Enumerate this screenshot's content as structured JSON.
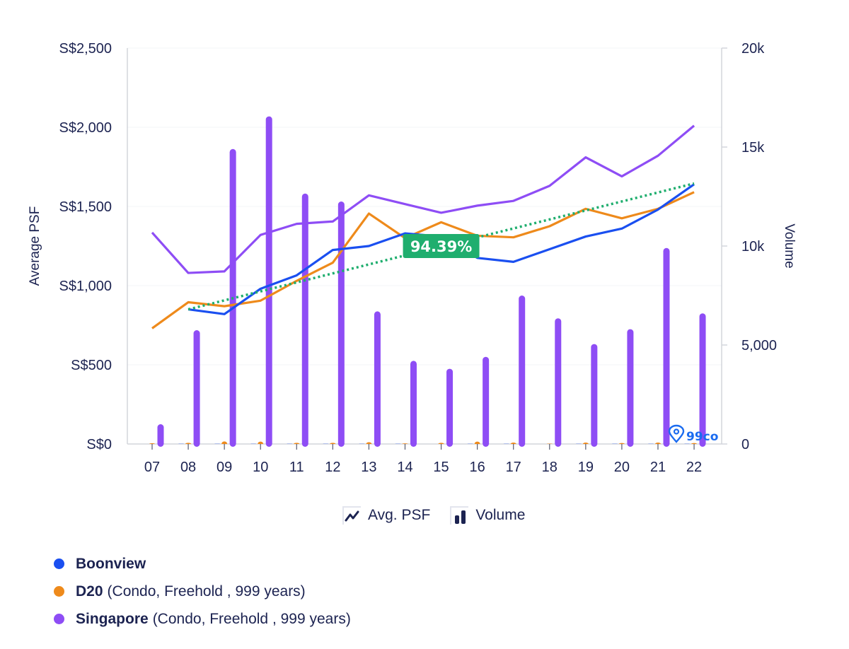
{
  "chart_data": {
    "type": "bar+line",
    "title": "",
    "categories": [
      "07",
      "08",
      "09",
      "10",
      "11",
      "12",
      "13",
      "14",
      "15",
      "16",
      "17",
      "18",
      "19",
      "20",
      "21",
      "22"
    ],
    "y_left": {
      "label": "Average PSF",
      "range": [
        0,
        2500
      ],
      "ticks": [
        0,
        500,
        1000,
        1500,
        2000,
        2500
      ],
      "tick_labels": [
        "S$0",
        "S$500",
        "S$1,000",
        "S$1,500",
        "S$2,000",
        "S$2,500"
      ]
    },
    "y_right": {
      "label": "Volume",
      "range": [
        0,
        20000
      ],
      "ticks": [
        0,
        5000,
        10000,
        15000,
        20000
      ],
      "tick_labels": [
        "0",
        "5,000",
        "10k",
        "15k",
        "20k"
      ]
    },
    "grid": true,
    "lines": [
      {
        "name": "Boonview",
        "color": "#1a4ff0",
        "values": [
          null,
          850,
          820,
          980,
          1065,
          1225,
          1250,
          1330,
          1310,
          1175,
          1150,
          1230,
          1310,
          1360,
          1480,
          1640
        ]
      },
      {
        "name": "D20",
        "color": "#ee8a1b",
        "values": [
          730,
          895,
          870,
          905,
          1030,
          1145,
          1455,
          1300,
          1400,
          1315,
          1305,
          1375,
          1485,
          1425,
          1485,
          1590
        ]
      },
      {
        "name": "Singapore",
        "color": "#8e4df5",
        "values": [
          1335,
          1080,
          1090,
          1320,
          1390,
          1405,
          1570,
          1515,
          1460,
          1505,
          1535,
          1630,
          1810,
          1690,
          1820,
          2010
        ]
      }
    ],
    "bars": [
      {
        "name": "Singapore Volume",
        "color": "#8e4df5",
        "values": [
          1000,
          5750,
          14900,
          16550,
          12650,
          12250,
          6700,
          4200,
          3800,
          4400,
          7500,
          6350,
          5050,
          5800,
          9900,
          6600
        ]
      },
      {
        "name": "D20 Volume",
        "color": "#ee8a1b",
        "values": [
          40,
          60,
          130,
          120,
          60,
          60,
          90,
          30,
          60,
          120,
          70,
          20,
          70,
          50,
          70,
          50
        ]
      },
      {
        "name": "Boonview Volume",
        "color": "#1a4ff0",
        "values": [
          0,
          10,
          10,
          10,
          10,
          10,
          10,
          10,
          0,
          10,
          10,
          0,
          10,
          10,
          10,
          10
        ]
      }
    ],
    "trend": {
      "name": "Boonview trend",
      "color": "#1fae6e",
      "from": [
        "08",
        850
      ],
      "to": [
        "22",
        1645
      ]
    },
    "annotation": {
      "text": "94.39%",
      "color": "#1fae6e",
      "at_category": "15"
    },
    "watermark": "99co"
  },
  "type_legend": [
    {
      "label": "Avg. PSF",
      "icon": "line-chart-icon"
    },
    {
      "label": "Volume",
      "icon": "bar-chart-icon"
    }
  ],
  "series_legend": [
    {
      "name": "Boonview",
      "detail": "",
      "color": "#1a4ff0"
    },
    {
      "name": "D20",
      "detail": "(Condo, Freehold , 999 years)",
      "color": "#ee8a1b"
    },
    {
      "name": "Singapore",
      "detail": "(Condo, Freehold , 999 years)",
      "color": "#8e4df5"
    }
  ]
}
